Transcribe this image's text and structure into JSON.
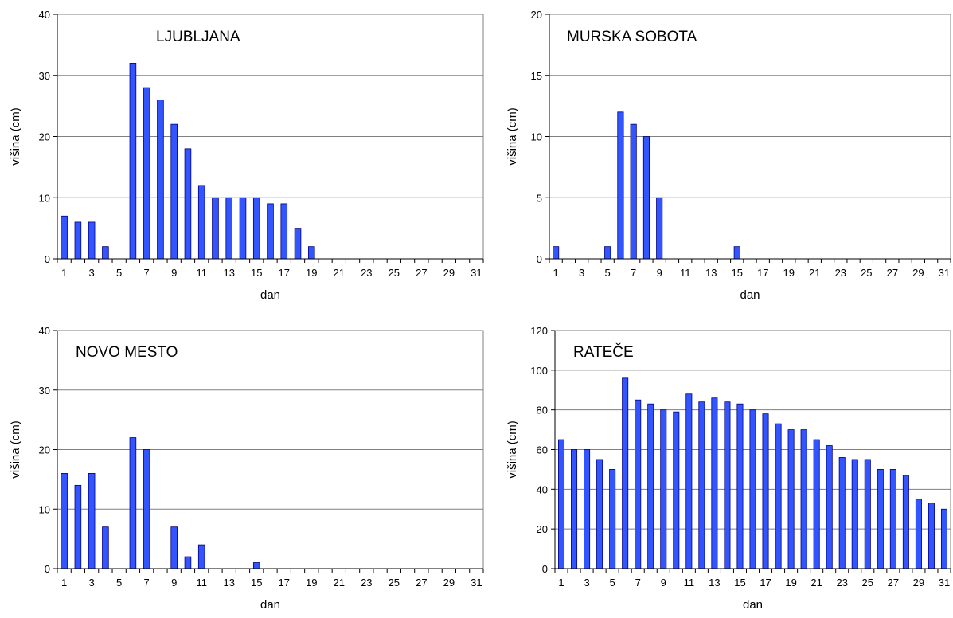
{
  "chart_data": [
    {
      "type": "bar",
      "title": "LJUBLJANA",
      "xlabel": "dan",
      "ylabel": "višina (cm)",
      "ylim": [
        0,
        40
      ],
      "yticks": [
        0,
        10,
        20,
        30,
        40
      ],
      "x": [
        1,
        2,
        3,
        4,
        5,
        6,
        7,
        8,
        9,
        10,
        11,
        12,
        13,
        14,
        15,
        16,
        17,
        18,
        19,
        20,
        21,
        22,
        23,
        24,
        25,
        26,
        27,
        28,
        29,
        30,
        31
      ],
      "xtick_labels": [
        1,
        3,
        5,
        7,
        9,
        11,
        13,
        15,
        17,
        19,
        21,
        23,
        25,
        27,
        29,
        31
      ],
      "values": [
        7,
        6,
        6,
        2,
        0,
        32,
        28,
        26,
        22,
        18,
        12,
        10,
        10,
        10,
        10,
        9,
        9,
        5,
        2,
        0,
        0,
        0,
        0,
        0,
        0,
        0,
        0,
        0,
        0,
        0,
        0
      ],
      "grid": true,
      "colors": {
        "bar": "#3355ff",
        "bar_edge": "#000080"
      }
    },
    {
      "type": "bar",
      "title": "MURSKA SOBOTA",
      "xlabel": "dan",
      "ylabel": "višina (cm)",
      "ylim": [
        0,
        20
      ],
      "yticks": [
        0,
        5,
        10,
        15,
        20
      ],
      "x": [
        1,
        2,
        3,
        4,
        5,
        6,
        7,
        8,
        9,
        10,
        11,
        12,
        13,
        14,
        15,
        16,
        17,
        18,
        19,
        20,
        21,
        22,
        23,
        24,
        25,
        26,
        27,
        28,
        29,
        30,
        31
      ],
      "xtick_labels": [
        1,
        3,
        5,
        7,
        9,
        11,
        13,
        15,
        17,
        19,
        21,
        23,
        25,
        27,
        29,
        31
      ],
      "values": [
        1,
        0,
        0,
        0,
        1,
        12,
        11,
        10,
        5,
        0,
        0,
        0,
        0,
        0,
        1,
        0,
        0,
        0,
        0,
        0,
        0,
        0,
        0,
        0,
        0,
        0,
        0,
        0,
        0,
        0,
        0
      ],
      "grid": true,
      "colors": {
        "bar": "#3355ff",
        "bar_edge": "#000080"
      }
    },
    {
      "type": "bar",
      "title": "NOVO MESTO",
      "xlabel": "dan",
      "ylabel": "višina (cm)",
      "ylim": [
        0,
        40
      ],
      "yticks": [
        0,
        10,
        20,
        30,
        40
      ],
      "x": [
        1,
        2,
        3,
        4,
        5,
        6,
        7,
        8,
        9,
        10,
        11,
        12,
        13,
        14,
        15,
        16,
        17,
        18,
        19,
        20,
        21,
        22,
        23,
        24,
        25,
        26,
        27,
        28,
        29,
        30,
        31
      ],
      "xtick_labels": [
        1,
        3,
        5,
        7,
        9,
        11,
        13,
        15,
        17,
        19,
        21,
        23,
        25,
        27,
        29,
        31
      ],
      "values": [
        16,
        14,
        16,
        7,
        0,
        22,
        20,
        0,
        7,
        2,
        4,
        0,
        0,
        0,
        1,
        0,
        0,
        0,
        0,
        0,
        0,
        0,
        0,
        0,
        0,
        0,
        0,
        0,
        0,
        0,
        0
      ],
      "grid": true,
      "colors": {
        "bar": "#3355ff",
        "bar_edge": "#000080"
      }
    },
    {
      "type": "bar",
      "title": "RATEČE",
      "xlabel": "dan",
      "ylabel": "višina (cm)",
      "ylim": [
        0,
        120
      ],
      "yticks": [
        0,
        20,
        40,
        60,
        80,
        100,
        120
      ],
      "x": [
        1,
        2,
        3,
        4,
        5,
        6,
        7,
        8,
        9,
        10,
        11,
        12,
        13,
        14,
        15,
        16,
        17,
        18,
        19,
        20,
        21,
        22,
        23,
        24,
        25,
        26,
        27,
        28,
        29,
        30,
        31
      ],
      "xtick_labels": [
        1,
        3,
        5,
        7,
        9,
        11,
        13,
        15,
        17,
        19,
        21,
        23,
        25,
        27,
        29,
        31
      ],
      "values": [
        65,
        60,
        60,
        55,
        50,
        96,
        85,
        83,
        80,
        79,
        88,
        84,
        86,
        84,
        83,
        80,
        78,
        73,
        70,
        70,
        65,
        62,
        56,
        55,
        55,
        50,
        50,
        47,
        35,
        33,
        30
      ],
      "grid": true,
      "colors": {
        "bar": "#3355ff",
        "bar_edge": "#000080"
      }
    }
  ]
}
